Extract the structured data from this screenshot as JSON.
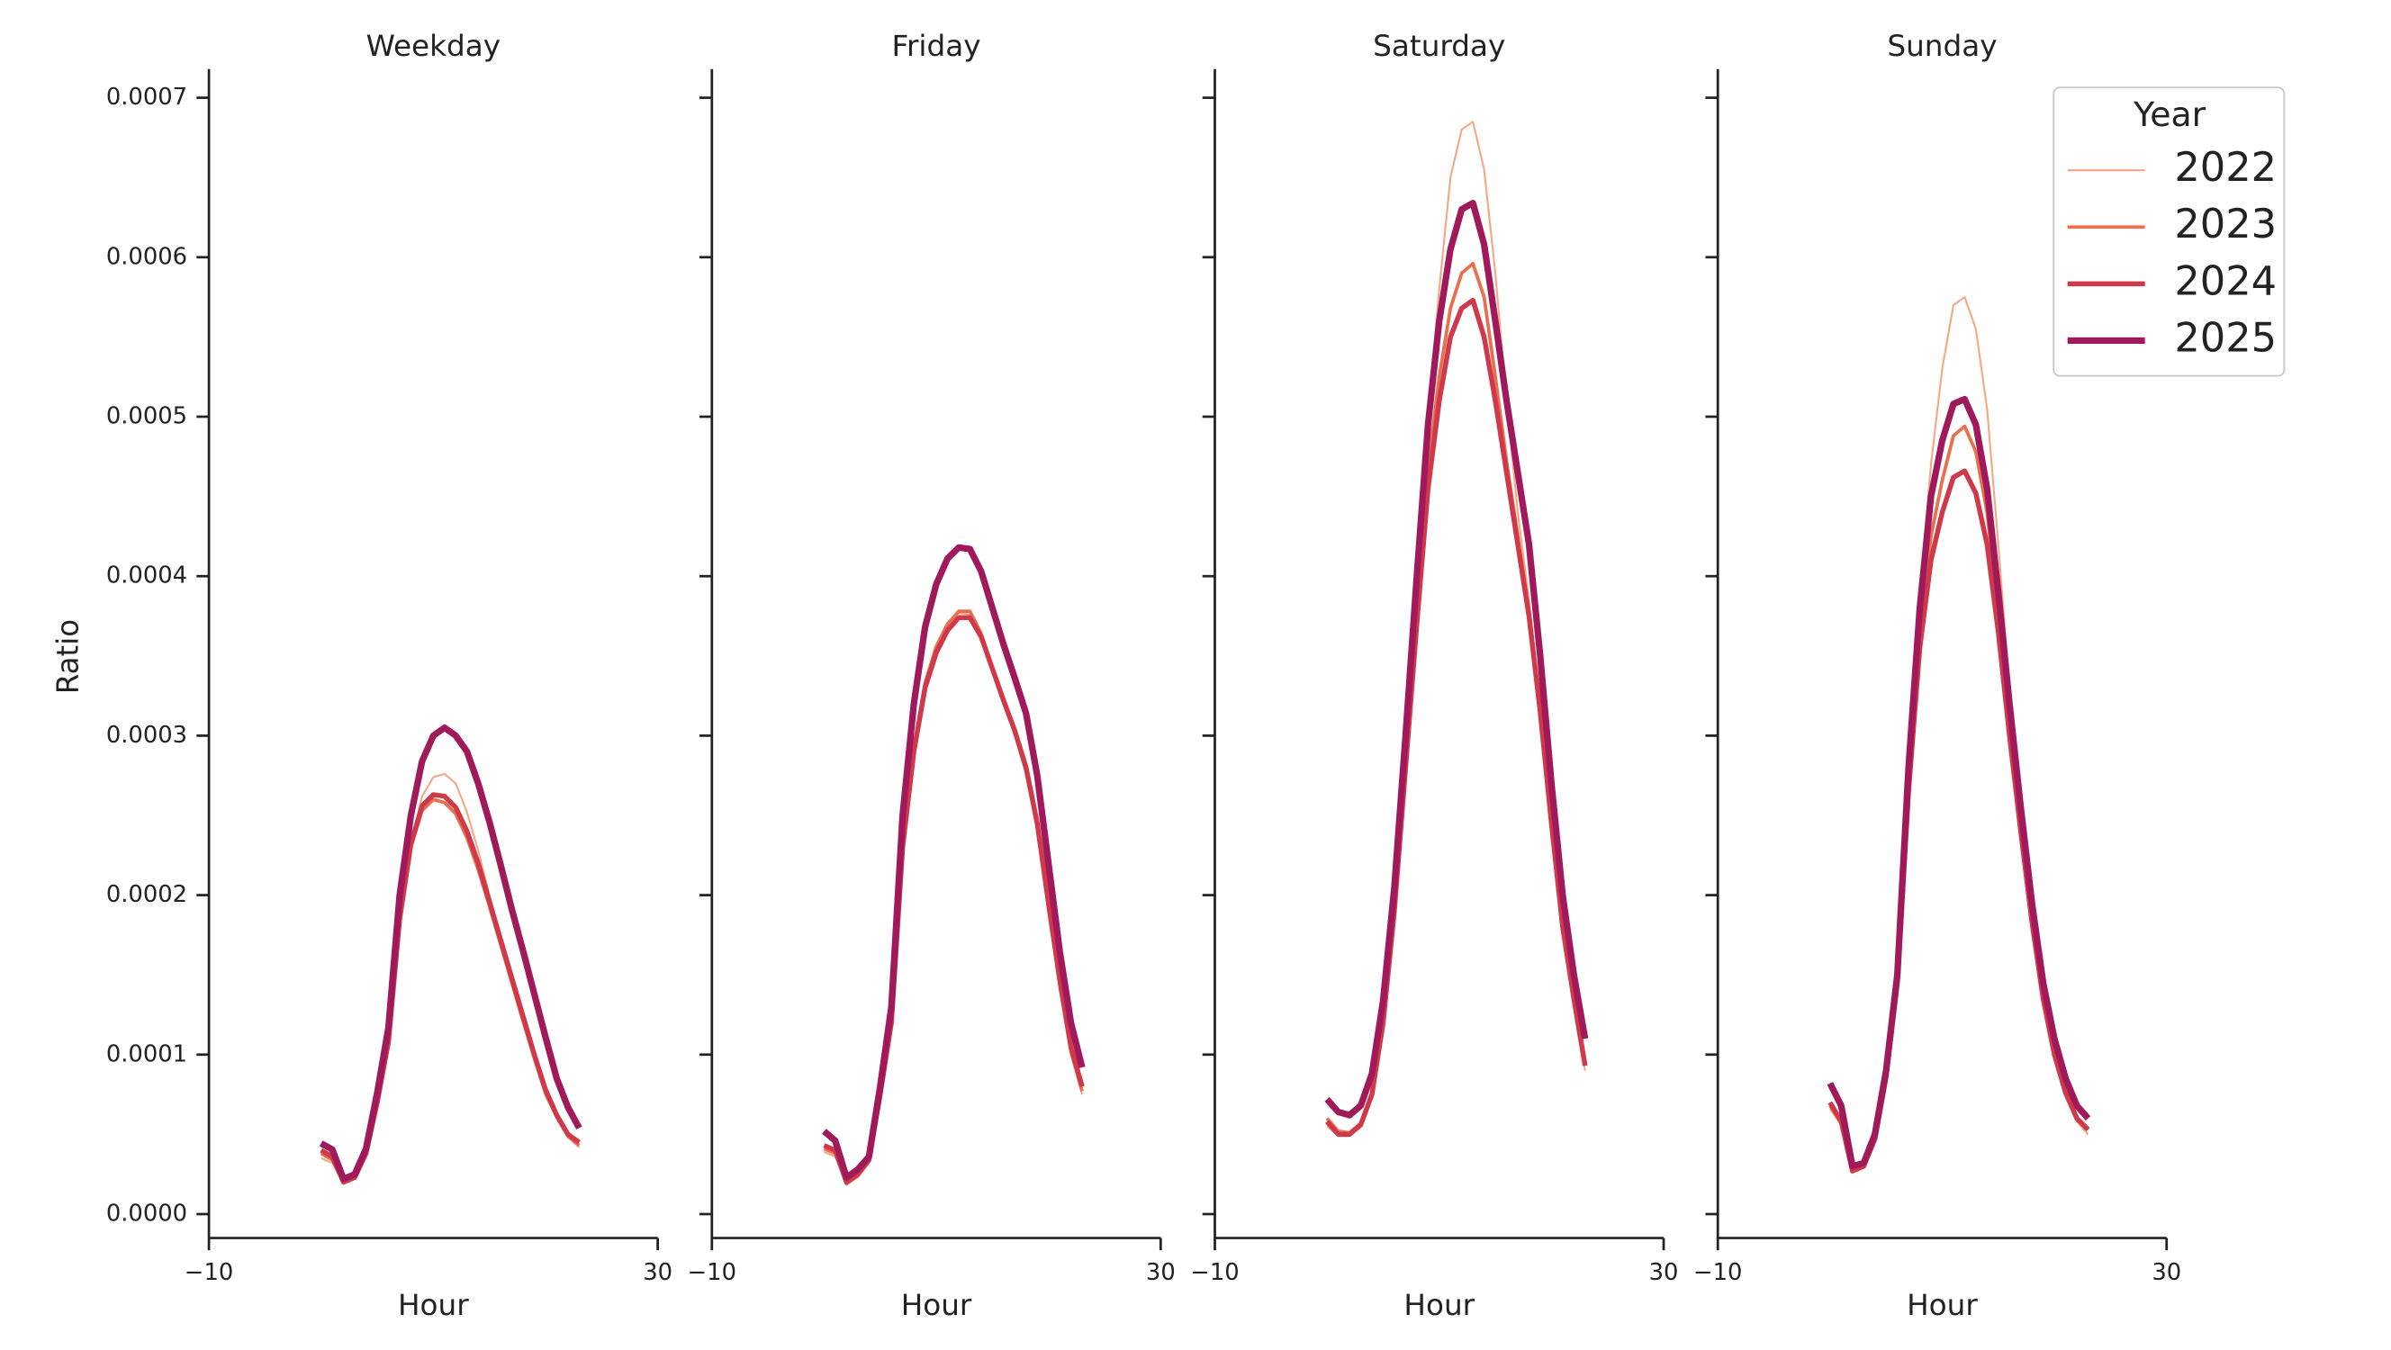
{
  "chart_data": [
    {
      "type": "line",
      "title": "Weekday",
      "xlabel": "Hour",
      "ylabel": "Ratio",
      "x": [
        0,
        1,
        2,
        3,
        4,
        5,
        6,
        7,
        8,
        9,
        10,
        11,
        12,
        13,
        14,
        15,
        16,
        17,
        18,
        19,
        20,
        21,
        22,
        23
      ],
      "xlim": [
        -10,
        30
      ],
      "xticks": [
        {
          "value": -10,
          "label": "−10"
        },
        30
      ],
      "ylim": [
        -1.5e-05,
        0.000718
      ],
      "yticks": [
        {
          "value": 0,
          "label": "0.0000"
        },
        {
          "value": 0.0001,
          "label": "0.0001"
        },
        {
          "value": 0.0002,
          "label": "0.0002"
        },
        {
          "value": 0.0003,
          "label": "0.0003"
        },
        {
          "value": 0.0004,
          "label": "0.0004"
        },
        {
          "value": 0.0005,
          "label": "0.0005"
        },
        {
          "value": 0.0006,
          "label": "0.0006"
        },
        {
          "value": 0.0007,
          "label": "0.0007"
        }
      ],
      "series": [
        {
          "color": "#f5a683",
          "values": [
            3.5e-05,
            3.2e-05,
            1.9e-05,
            2.2e-05,
            3.6e-05,
            6.8e-05,
            0.000105,
            0.00018,
            0.000232,
            0.000262,
            0.000274,
            0.000276,
            0.00027,
            0.000252,
            0.000228,
            0.0002,
            0.000172,
            0.000146,
            0.00012,
            9.6e-05,
            7.4e-05,
            6e-05,
            4.8e-05,
            4.2e-05
          ]
        },
        {
          "color": "#e8704e",
          "values": [
            3.8e-05,
            3.4e-05,
            2e-05,
            2.3e-05,
            3.7e-05,
            6.9e-05,
            0.000106,
            0.000183,
            0.00023,
            0.000253,
            0.00026,
            0.000258,
            0.000251,
            0.000236,
            0.000216,
            0.000193,
            0.000169,
            0.000145,
            0.000121,
            9.8e-05,
            7.6e-05,
            6.1e-05,
            4.9e-05,
            4.3e-05
          ]
        },
        {
          "color": "#d0394a",
          "values": [
            4e-05,
            3.6e-05,
            2e-05,
            2.3e-05,
            3.8e-05,
            7e-05,
            0.000108,
            0.000185,
            0.000232,
            0.000256,
            0.000263,
            0.000262,
            0.000255,
            0.00024,
            0.00022,
            0.000196,
            0.000172,
            0.000148,
            0.000124,
            0.0001,
            7.8e-05,
            6.2e-05,
            5e-05,
            4.5e-05
          ]
        },
        {
          "color": "#a0195a",
          "values": [
            4.44e-05,
            4.05e-05,
            2.2e-05,
            2.5e-05,
            4.1e-05,
            7.6e-05,
            0.000117,
            0.0002,
            0.00025,
            0.000284,
            0.0003,
            0.000305,
            0.0003,
            0.00029,
            0.00027,
            0.000246,
            0.000219,
            0.000191,
            0.000165,
            0.000138,
            0.000111,
            8.5e-05,
            6.7e-05,
            5.4e-05
          ]
        }
      ]
    },
    {
      "type": "line",
      "title": "Friday",
      "xlabel": "Hour",
      "x": [
        0,
        1,
        2,
        3,
        4,
        5,
        6,
        7,
        8,
        9,
        10,
        11,
        12,
        13,
        14,
        15,
        16,
        17,
        18,
        19,
        20,
        21,
        22,
        23
      ],
      "xlim": [
        -10,
        30
      ],
      "xticks": [
        {
          "value": -10,
          "label": "−10"
        },
        30
      ],
      "series": [
        {
          "color": "#f5a683",
          "values": [
            3.9e-05,
            3.6e-05,
            1.9e-05,
            2.3e-05,
            3.2e-05,
            7.2e-05,
            0.000116,
            0.000226,
            0.00029,
            0.000332,
            0.000355,
            0.000369,
            0.000377,
            0.000376,
            0.000362,
            0.000341,
            0.00032,
            0.0003,
            0.000276,
            0.00024,
            0.00019,
            0.000142,
            0.0001,
            7.5e-05
          ]
        },
        {
          "color": "#e8704e",
          "values": [
            4.1e-05,
            3.8e-05,
            1.9e-05,
            2.4e-05,
            3.3e-05,
            7.4e-05,
            0.000118,
            0.000228,
            0.000292,
            0.000333,
            0.000356,
            0.00037,
            0.000378,
            0.000378,
            0.000364,
            0.000343,
            0.000322,
            0.000302,
            0.000278,
            0.000243,
            0.000192,
            0.000144,
            0.000102,
            7.7e-05
          ]
        },
        {
          "color": "#d0394a",
          "values": [
            4.3e-05,
            4e-05,
            2e-05,
            2.5e-05,
            3.4e-05,
            7.5e-05,
            0.00012,
            0.00023,
            0.00029,
            0.00033,
            0.000352,
            0.000366,
            0.000374,
            0.000374,
            0.000362,
            0.000342,
            0.000322,
            0.000303,
            0.00028,
            0.000245,
            0.000195,
            0.000147,
            0.000105,
            8e-05
          ]
        },
        {
          "color": "#a0195a",
          "values": [
            5.2e-05,
            4.6e-05,
            2.3e-05,
            2.8e-05,
            3.6e-05,
            8e-05,
            0.00013,
            0.00025,
            0.00032,
            0.000368,
            0.000395,
            0.000411,
            0.000418,
            0.000417,
            0.000403,
            0.00038,
            0.000357,
            0.000336,
            0.000314,
            0.000275,
            0.00022,
            0.000165,
            0.00012,
            9.2e-05
          ]
        }
      ]
    },
    {
      "type": "line",
      "title": "Saturday",
      "xlabel": "Hour",
      "x": [
        0,
        1,
        2,
        3,
        4,
        5,
        6,
        7,
        8,
        9,
        10,
        11,
        12,
        13,
        14,
        15,
        16,
        17,
        18,
        19,
        20,
        21,
        22,
        23
      ],
      "xlim": [
        -10,
        30
      ],
      "xticks": [
        {
          "value": -10,
          "label": "−10"
        },
        30
      ],
      "series": [
        {
          "color": "#f5a683",
          "values": [
            5.5e-05,
            4.9e-05,
            4.9e-05,
            5.5e-05,
            7.4e-05,
            0.00012,
            0.00019,
            0.00029,
            0.0004,
            0.0005,
            0.00058,
            0.00065,
            0.00068,
            0.000685,
            0.000655,
            0.00059,
            0.00051,
            0.00044,
            0.000385,
            0.00032,
            0.00025,
            0.00018,
            0.00013,
            9e-05
          ]
        },
        {
          "color": "#e8704e",
          "values": [
            6e-05,
            5.2e-05,
            5.1e-05,
            5.7e-05,
            7.6e-05,
            0.000122,
            0.000193,
            0.000285,
            0.00038,
            0.000468,
            0.000525,
            0.000568,
            0.00059,
            0.000596,
            0.000575,
            0.000525,
            0.000472,
            0.000425,
            0.000378,
            0.000318,
            0.000248,
            0.000182,
            0.000135,
            9.5e-05
          ]
        },
        {
          "color": "#d0394a",
          "values": [
            5.8e-05,
            5e-05,
            5e-05,
            5.6e-05,
            7.5e-05,
            0.00012,
            0.00019,
            0.00028,
            0.00037,
            0.000455,
            0.00051,
            0.00055,
            0.000568,
            0.000573,
            0.00055,
            0.00051,
            0.000465,
            0.00042,
            0.000375,
            0.000315,
            0.000245,
            0.00018,
            0.000135,
            9.3e-05
          ]
        },
        {
          "color": "#a0195a",
          "values": [
            7.2e-05,
            6.4e-05,
            6.2e-05,
            6.8e-05,
            8.8e-05,
            0.000134,
            0.000205,
            0.0003,
            0.0004,
            0.000495,
            0.00056,
            0.000605,
            0.00063,
            0.000634,
            0.000608,
            0.00056,
            0.00051,
            0.000465,
            0.00042,
            0.00035,
            0.00027,
            0.0002,
            0.00015,
            0.00011
          ]
        }
      ]
    },
    {
      "type": "line",
      "title": "Sunday",
      "xlabel": "Hour",
      "x": [
        0,
        1,
        2,
        3,
        4,
        5,
        6,
        7,
        8,
        9,
        10,
        11,
        12,
        13,
        14,
        15,
        16,
        17,
        18,
        19,
        20,
        21,
        22,
        23
      ],
      "xlim": [
        -10,
        30
      ],
      "xticks": [
        {
          "value": -10,
          "label": "−10"
        },
        30
      ],
      "legend": {
        "title": "Year",
        "loc": "upper right"
      },
      "series": [
        {
          "name": "2022",
          "color": "#f5a683",
          "values": [
            6.6e-05,
            5.6e-05,
            2.7e-05,
            3e-05,
            4.7e-05,
            8.8e-05,
            0.00015,
            0.00028,
            0.00039,
            0.00047,
            0.00053,
            0.00057,
            0.000575,
            0.000555,
            0.000505,
            0.00042,
            0.00033,
            0.000255,
            0.00019,
            0.000138,
            0.0001,
            7.5e-05,
            5.8e-05,
            5e-05
          ]
        },
        {
          "name": "2023",
          "color": "#e8704e",
          "values": [
            6.8e-05,
            5.7e-05,
            2.7e-05,
            3e-05,
            4.7e-05,
            8.6e-05,
            0.000145,
            0.000268,
            0.000365,
            0.000425,
            0.00046,
            0.000488,
            0.000494,
            0.000478,
            0.00044,
            0.000378,
            0.000308,
            0.000245,
            0.000186,
            0.000137,
            0.000101,
            7.7e-05,
            6e-05,
            5.3e-05
          ]
        },
        {
          "name": "2024",
          "color": "#d0394a",
          "values": [
            7e-05,
            5.8e-05,
            2.7e-05,
            3e-05,
            4.7e-05,
            8.6e-05,
            0.000145,
            0.000265,
            0.000355,
            0.00041,
            0.00044,
            0.000462,
            0.000466,
            0.000452,
            0.00042,
            0.000365,
            0.0003,
            0.00024,
            0.000183,
            0.000135,
            0.0001,
            7.6e-05,
            6e-05,
            5.3e-05
          ]
        },
        {
          "name": "2025",
          "color": "#a0195a",
          "values": [
            8.2e-05,
            6.8e-05,
            3e-05,
            3.2e-05,
            5e-05,
            9e-05,
            0.00015,
            0.00028,
            0.00038,
            0.00045,
            0.000485,
            0.000508,
            0.000511,
            0.000495,
            0.000455,
            0.00039,
            0.00032,
            0.000255,
            0.000195,
            0.000145,
            0.00011,
            8.5e-05,
            6.8e-05,
            6e-05
          ]
        }
      ]
    }
  ]
}
